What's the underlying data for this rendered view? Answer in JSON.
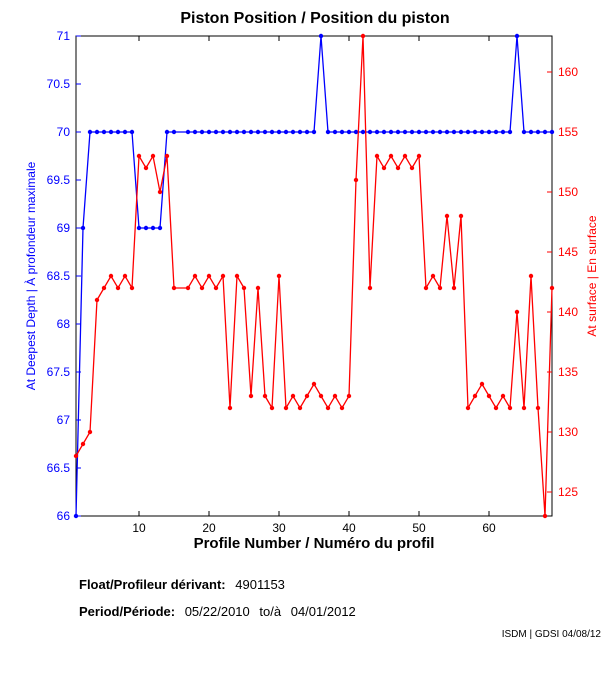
{
  "chart_data": {
    "type": "line",
    "title": "Piston Position / Position du piston",
    "xlabel": "Profile Number / Numéro du profil",
    "ylabel_left": "At Deepest Depth | À profondeur maximale",
    "ylabel_right": "At surface | En surface",
    "xlim": [
      1,
      69
    ],
    "ylim_left": [
      66,
      71
    ],
    "ylim_right": [
      123,
      163
    ],
    "x_ticks": [
      10,
      20,
      30,
      40,
      50,
      60
    ],
    "y_ticks_left": [
      66,
      66.5,
      67,
      67.5,
      68,
      68.5,
      69,
      69.5,
      70,
      70.5,
      71
    ],
    "y_ticks_right": [
      125,
      130,
      135,
      140,
      145,
      150,
      155,
      160
    ],
    "grid": false,
    "series": [
      {
        "axis": "left",
        "color": "#0000ff",
        "x": [
          1,
          2,
          3,
          4,
          5,
          6,
          7,
          8,
          9,
          10,
          11,
          12,
          13,
          14,
          15,
          17,
          18,
          19,
          20,
          21,
          22,
          23,
          24,
          25,
          26,
          27,
          28,
          29,
          30,
          31,
          32,
          33,
          34,
          35,
          36,
          37,
          38,
          39,
          40,
          41,
          42,
          43,
          44,
          45,
          46,
          47,
          48,
          49,
          50,
          51,
          52,
          53,
          54,
          55,
          56,
          57,
          58,
          59,
          60,
          61,
          62,
          63,
          64,
          65,
          66,
          67,
          68,
          69
        ],
        "values": [
          66,
          69,
          70,
          70,
          70,
          70,
          70,
          70,
          70,
          69,
          69,
          69,
          69,
          70,
          70,
          70,
          70,
          70,
          70,
          70,
          70,
          70,
          70,
          70,
          70,
          70,
          70,
          70,
          70,
          70,
          70,
          70,
          70,
          70,
          71,
          70,
          70,
          70,
          70,
          70,
          70,
          70,
          70,
          70,
          70,
          70,
          70,
          70,
          70,
          70,
          70,
          70,
          70,
          70,
          70,
          70,
          70,
          70,
          70,
          70,
          70,
          70,
          71,
          70,
          70,
          70,
          70,
          70
        ]
      },
      {
        "axis": "right",
        "color": "#ff0000",
        "x": [
          1,
          2,
          3,
          4,
          5,
          6,
          7,
          8,
          9,
          10,
          11,
          12,
          13,
          14,
          15,
          17,
          18,
          19,
          20,
          21,
          22,
          23,
          24,
          25,
          26,
          27,
          28,
          29,
          30,
          31,
          32,
          33,
          34,
          35,
          36,
          37,
          38,
          39,
          40,
          41,
          42,
          43,
          44,
          45,
          46,
          47,
          48,
          49,
          50,
          51,
          52,
          53,
          54,
          55,
          56,
          57,
          58,
          59,
          60,
          61,
          62,
          63,
          64,
          65,
          66,
          67,
          68,
          69
        ],
        "values": [
          128,
          129,
          130,
          141,
          142,
          143,
          142,
          143,
          142,
          153,
          152,
          153,
          150,
          153,
          142,
          142,
          143,
          142,
          143,
          142,
          143,
          132,
          143,
          142,
          133,
          142,
          133,
          132,
          143,
          132,
          133,
          132,
          133,
          134,
          133,
          132,
          133,
          132,
          133,
          151,
          163,
          142,
          153,
          152,
          153,
          152,
          153,
          152,
          153,
          142,
          143,
          142,
          148,
          142,
          148,
          132,
          133,
          134,
          133,
          132,
          133,
          132,
          140,
          132,
          143,
          132,
          123,
          142
        ]
      }
    ]
  },
  "info": {
    "float_label": "Float/Profileur dérivant:",
    "float_value": "4901153",
    "period_label": "Period/Période:",
    "period_start": "05/22/2010",
    "period_sep": "to/à",
    "period_end": "04/01/2012"
  },
  "credit": "ISDM | GDSI 04/08/12"
}
